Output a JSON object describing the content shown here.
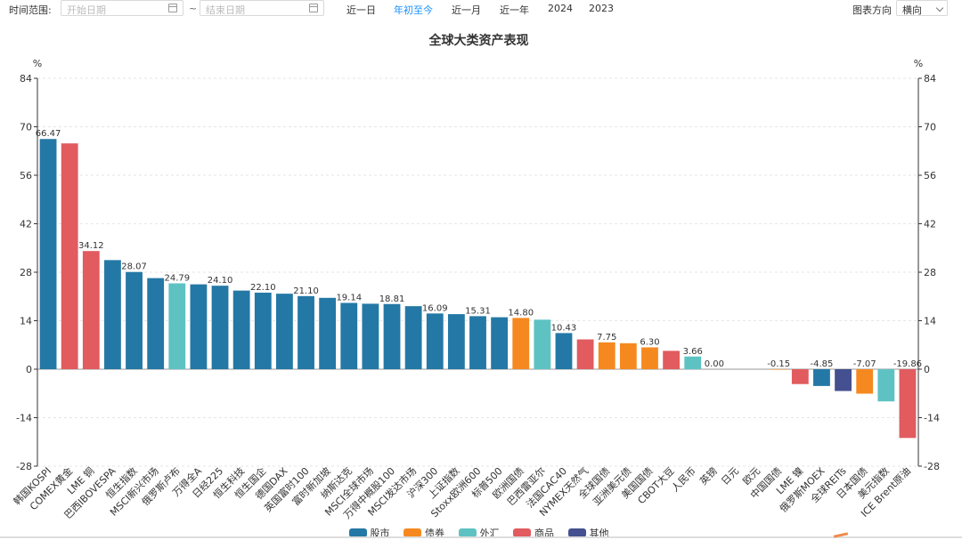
{
  "toolbar": {
    "range_label": "时间范围:",
    "start_placeholder": "开始日期",
    "end_placeholder": "结束日期",
    "separator": "~",
    "ranges": [
      "近一日",
      "年初至今",
      "近一月",
      "近一年",
      "2024",
      "2023"
    ],
    "active_range": "年初至今",
    "direction_label": "图表方向",
    "direction_value": "横向"
  },
  "colors": {
    "股市": "#2478a5",
    "债券": "#f5891f",
    "外汇": "#5ec2c3",
    "商品": "#e15b5f",
    "其他": "#44508f"
  },
  "chart_data": {
    "type": "bar",
    "title": "全球大类资产表现",
    "ylabel": "%",
    "ylim": [
      -28,
      84
    ],
    "yticks": [
      -28,
      -14,
      0,
      14,
      28,
      42,
      56,
      70,
      84
    ],
    "legend": [
      "股市",
      "债券",
      "外汇",
      "商品",
      "其他"
    ],
    "legend_position": "bottom",
    "categories": [
      "韩国KOSPI",
      "COMEX黄金",
      "LME 铜",
      "巴西IBOVESPA",
      "恒生指数",
      "MSCI新兴市场",
      "俄罗斯卢布",
      "万得全A",
      "日经225",
      "恒生科技",
      "恒生国企",
      "德国DAX",
      "英国富时100",
      "富时新加坡",
      "纳斯达克",
      "MSCI全球市场",
      "万得中概股100",
      "MSCI发达市场",
      "沪深300",
      "上证指数",
      "Stoxx欧洲600",
      "标普500",
      "欧洲国债",
      "巴西雷亚尔",
      "法国CAC40",
      "NYMEX天然气",
      "全球国债",
      "亚洲美元债",
      "美国国债",
      "CBOT大豆",
      "人民币",
      "英镑",
      "日元",
      "欧元",
      "中国国债",
      "LME 镍",
      "俄罗斯MOEX",
      "全球REITs",
      "日本国债",
      "美元指数",
      "ICE Brent原油"
    ],
    "values": [
      66.47,
      65.2,
      34.12,
      31.5,
      28.07,
      26.3,
      24.79,
      24.5,
      24.1,
      22.7,
      22.1,
      21.8,
      21.1,
      20.6,
      19.14,
      18.9,
      18.81,
      18.2,
      16.09,
      15.9,
      15.31,
      15.0,
      14.8,
      14.3,
      10.43,
      8.6,
      7.75,
      7.5,
      6.3,
      5.3,
      3.66,
      0.0,
      0.0,
      0.0,
      -0.15,
      -4.3,
      -4.85,
      -6.3,
      -7.07,
      -9.3,
      -19.86
    ],
    "asset_class": [
      "股市",
      "商品",
      "商品",
      "股市",
      "股市",
      "股市",
      "外汇",
      "股市",
      "股市",
      "股市",
      "股市",
      "股市",
      "股市",
      "股市",
      "股市",
      "股市",
      "股市",
      "股市",
      "股市",
      "股市",
      "股市",
      "股市",
      "债券",
      "外汇",
      "股市",
      "商品",
      "债券",
      "债券",
      "债券",
      "商品",
      "外汇",
      "外汇",
      "外汇",
      "外汇",
      "债券",
      "商品",
      "股市",
      "其他",
      "债券",
      "外汇",
      "商品"
    ],
    "data_labels": [
      "66.47",
      "",
      "34.12",
      "",
      "28.07",
      "",
      "24.79",
      "",
      "24.10",
      "",
      "22.10",
      "",
      "21.10",
      "",
      "19.14",
      "",
      "18.81",
      "",
      "16.09",
      "",
      "15.31",
      "",
      "14.80",
      "",
      "10.43",
      "",
      "7.75",
      "",
      "6.30",
      "",
      "3.66",
      "0.00",
      "",
      "",
      "-0.15",
      "",
      "-4.85",
      "",
      "-7.07",
      "",
      "-19.86"
    ]
  }
}
